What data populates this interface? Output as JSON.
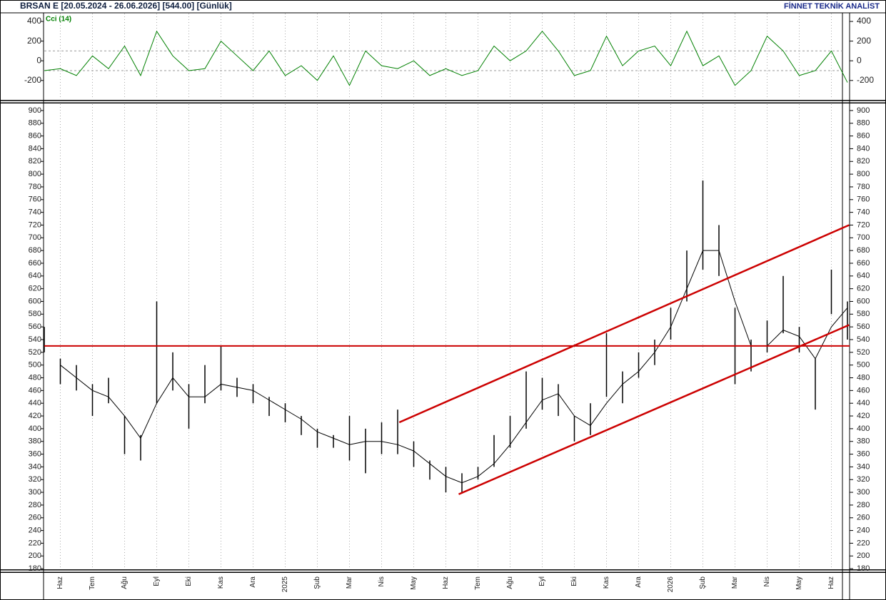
{
  "chart_data": [
    {
      "type": "line",
      "title": "BRSAN E  [20.05.2024 - 26.06.2026]  [544.00]  [Günlük]",
      "source": "FİNNET TEKNİK ANALİST",
      "label": "Cci (14)",
      "color": "#008000",
      "values": [
        -100,
        -80,
        -150,
        50,
        -80,
        150,
        -150,
        300,
        50,
        -100,
        -80,
        200,
        50,
        -100,
        100,
        -150,
        -50,
        -200,
        50,
        -250,
        100,
        -50,
        -80,
        0,
        -150,
        -80,
        -150,
        -100,
        150,
        0,
        100,
        300,
        100,
        -150,
        -100,
        250,
        -50,
        100,
        150,
        -50,
        300,
        -50,
        50,
        -250,
        -100,
        250,
        100,
        -150,
        -100,
        100,
        -220
      ],
      "ylim": [
        -390,
        480
      ],
      "yticks": [
        400,
        200,
        0,
        -200
      ],
      "reference_lines": [
        100,
        -100
      ]
    },
    {
      "type": "hilo",
      "color": "#000000",
      "categories": [
        null,
        "Haz",
        null,
        "Tem",
        null,
        "Ağu",
        null,
        "Eyl",
        null,
        "Eki",
        null,
        "Kas",
        null,
        "Ara",
        null,
        "2025",
        null,
        "Şub",
        null,
        "Mar",
        null,
        "Nis",
        null,
        "May",
        null,
        "Haz",
        null,
        "Tem",
        null,
        "Ağu",
        null,
        "Eyl",
        null,
        "Eki",
        null,
        "Kas",
        null,
        "Ara",
        null,
        "2026",
        null,
        "Şub",
        null,
        "Mar",
        null,
        "Nis",
        null,
        "May",
        null,
        "Haz",
        null
      ],
      "high": [
        560,
        510,
        500,
        470,
        480,
        420,
        390,
        600,
        520,
        470,
        500,
        530,
        480,
        470,
        450,
        440,
        420,
        400,
        390,
        420,
        400,
        410,
        430,
        380,
        350,
        340,
        330,
        340,
        390,
        420,
        490,
        480,
        470,
        420,
        440,
        550,
        490,
        520,
        540,
        590,
        680,
        790,
        720,
        590,
        540,
        570,
        640,
        560,
        510,
        650,
        600
      ],
      "low": [
        520,
        470,
        460,
        420,
        440,
        360,
        350,
        440,
        460,
        400,
        440,
        460,
        450,
        440,
        420,
        410,
        390,
        370,
        370,
        350,
        330,
        360,
        360,
        340,
        320,
        300,
        300,
        320,
        340,
        370,
        400,
        430,
        420,
        380,
        390,
        450,
        440,
        480,
        500,
        540,
        600,
        650,
        640,
        470,
        490,
        520,
        550,
        520,
        430,
        580,
        540
      ],
      "ma_values": [
        null,
        500,
        480,
        460,
        450,
        420,
        385,
        440,
        480,
        450,
        450,
        470,
        465,
        460,
        445,
        430,
        415,
        395,
        385,
        375,
        380,
        380,
        375,
        365,
        345,
        325,
        315,
        325,
        345,
        375,
        410,
        445,
        455,
        420,
        405,
        440,
        470,
        490,
        520,
        560,
        620,
        680,
        680,
        600,
        530,
        530,
        555,
        545,
        510,
        560,
        590
      ],
      "ylim": [
        179,
        910
      ],
      "yticks": [
        180,
        200,
        220,
        240,
        260,
        280,
        300,
        320,
        340,
        360,
        380,
        400,
        420,
        440,
        460,
        480,
        500,
        520,
        540,
        560,
        580,
        600,
        620,
        640,
        660,
        680,
        700,
        720,
        740,
        760,
        780,
        800,
        820,
        840,
        860,
        880,
        900
      ],
      "line_color": "#cc0000",
      "hlines": [
        530
      ],
      "trendlines": [
        {
          "start": [
            22.1,
            410
          ],
          "end": [
            50.1,
            720
          ]
        },
        {
          "start": [
            25.8,
            297
          ],
          "end": [
            50.1,
            563
          ]
        }
      ]
    }
  ]
}
